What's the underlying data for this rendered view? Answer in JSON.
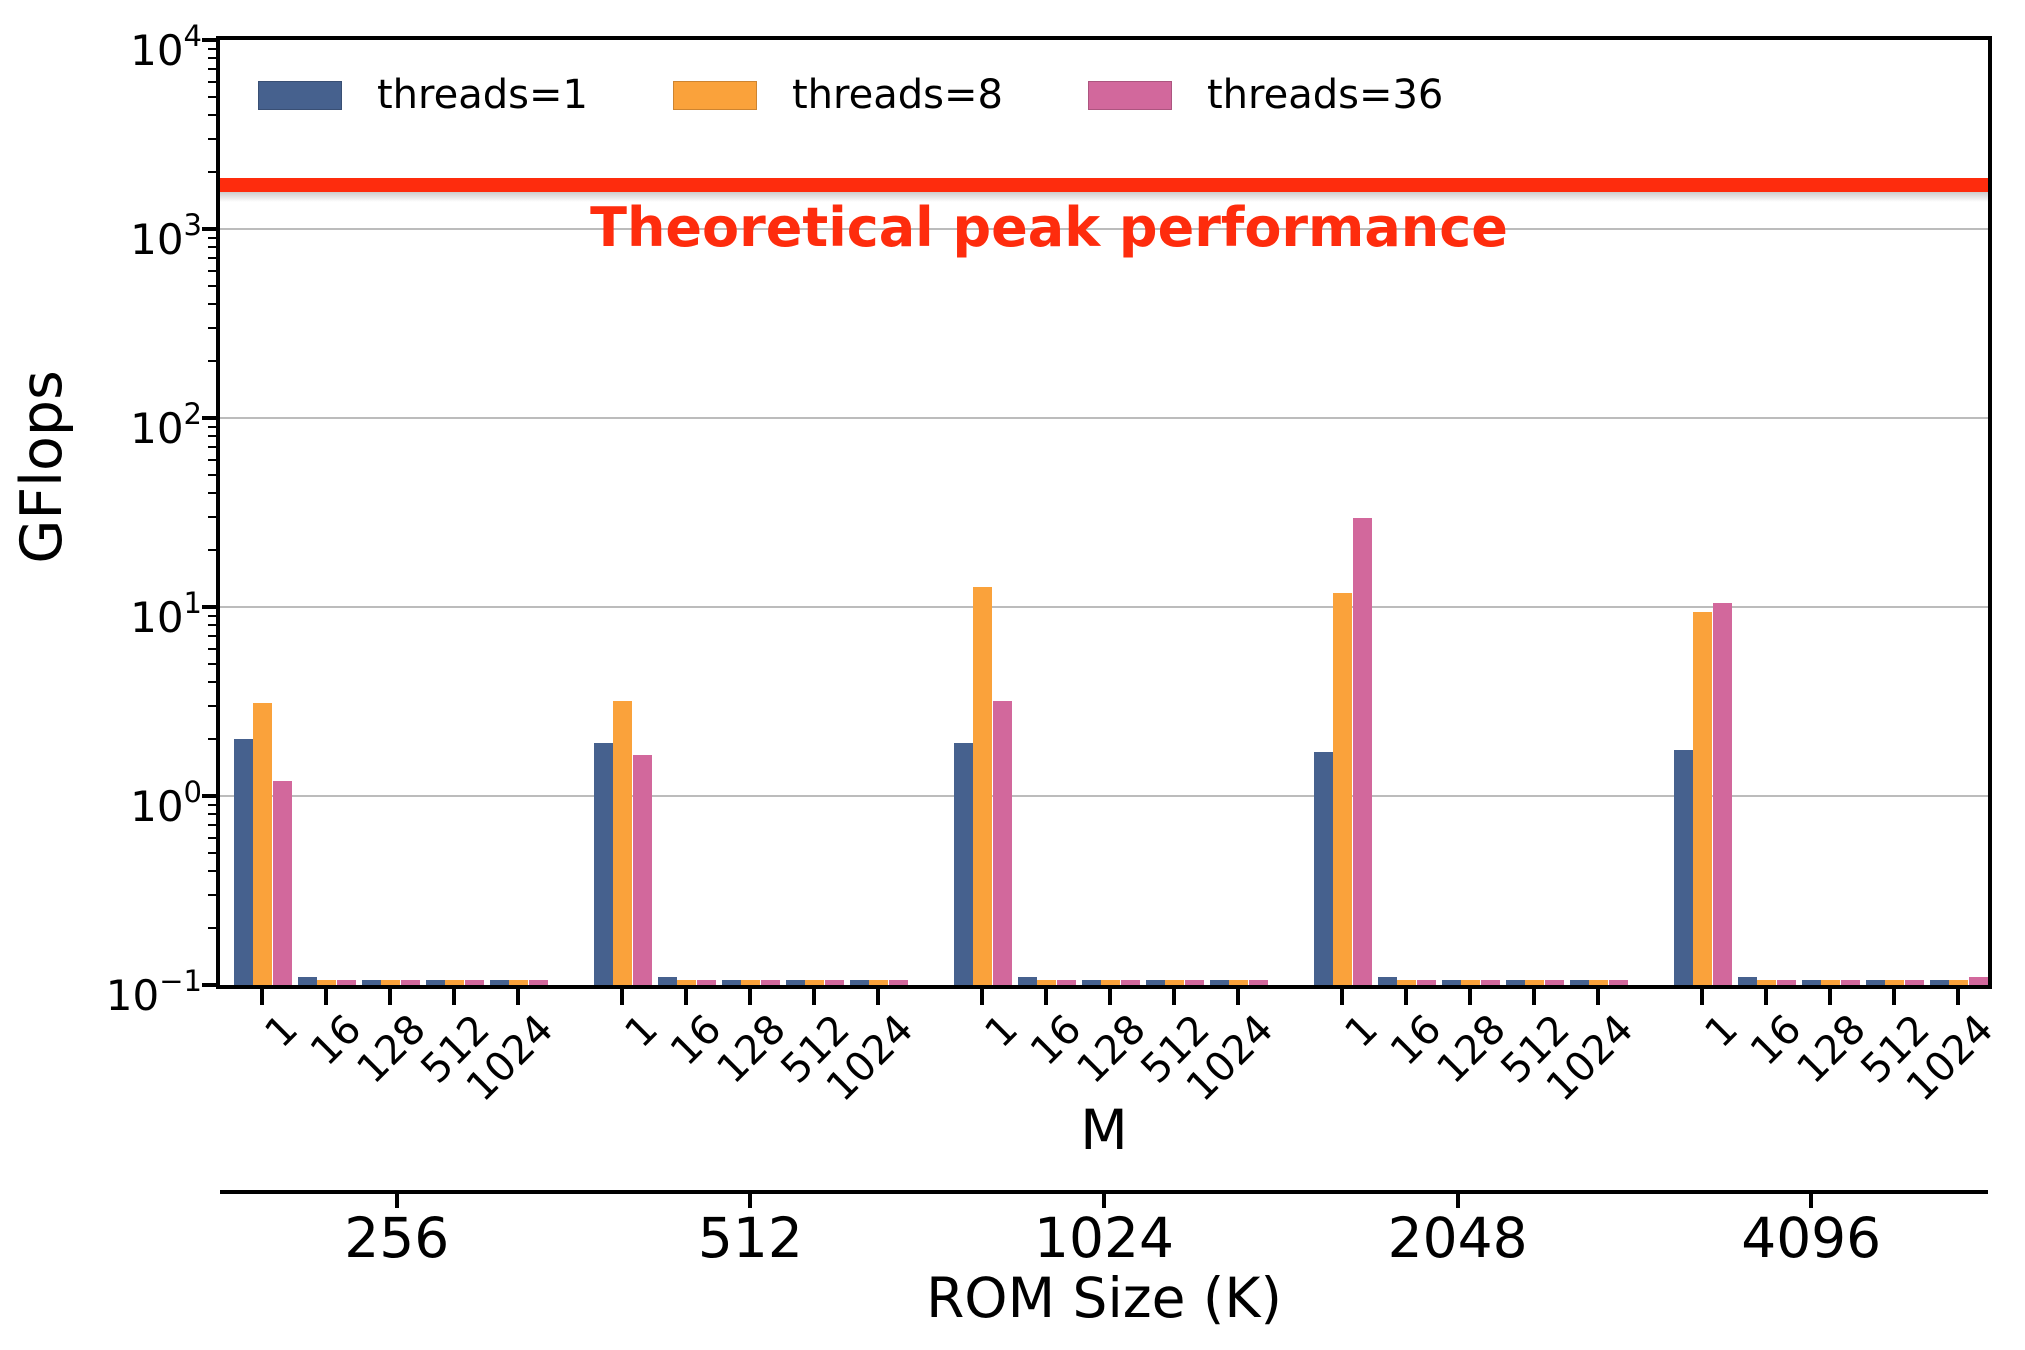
{
  "chart_data": {
    "type": "bar",
    "title": "",
    "ylabel": "GFlops",
    "xlabel": "M",
    "xlabel2": "ROM Size (K)",
    "yscale": "log",
    "ylim": [
      0.1,
      10000
    ],
    "y_tick_exponents": [
      4,
      3,
      2,
      1,
      0,
      -1
    ],
    "grid": "horizontal gridlines at each decade",
    "legend_position": "upper left, horizontal row",
    "groups": [
      "256",
      "512",
      "1024",
      "2048",
      "4096"
    ],
    "categories": [
      "1",
      "16",
      "128",
      "512",
      "1024"
    ],
    "series": [
      {
        "name": "threads=1",
        "color": "#46618e",
        "values": {
          "256": [
            2.0,
            0.11,
            0.1,
            0.1,
            0.1
          ],
          "512": [
            1.9,
            0.11,
            0.1,
            0.1,
            0.1
          ],
          "1024": [
            1.9,
            0.11,
            0.1,
            0.1,
            0.1
          ],
          "2048": [
            1.7,
            0.11,
            0.1,
            0.1,
            0.1
          ],
          "4096": [
            1.75,
            0.11,
            0.1,
            0.1,
            0.1
          ]
        }
      },
      {
        "name": "threads=8",
        "color": "#faa23b",
        "values": {
          "256": [
            3.1,
            0.1,
            0.1,
            0.1,
            0.1
          ],
          "512": [
            3.2,
            0.1,
            0.1,
            0.1,
            0.1
          ],
          "1024": [
            12.8,
            0.1,
            0.1,
            0.1,
            0.1
          ],
          "2048": [
            11.8,
            0.1,
            0.1,
            0.1,
            0.1
          ],
          "4096": [
            9.4,
            0.1,
            0.1,
            0.1,
            0.1
          ]
        }
      },
      {
        "name": "threads=36",
        "color": "#d2689c",
        "values": {
          "256": [
            1.2,
            0.1,
            0.1,
            0.1,
            0.1
          ],
          "512": [
            1.65,
            0.1,
            0.1,
            0.1,
            0.1
          ],
          "1024": [
            3.2,
            0.1,
            0.1,
            0.1,
            0.1
          ],
          "2048": [
            29.5,
            0.1,
            0.1,
            0.1,
            0.1
          ],
          "4096": [
            10.5,
            0.1,
            0.1,
            0.1,
            0.11
          ]
        }
      }
    ],
    "peak_line": {
      "label": "Theoretical peak performance",
      "value_gflops": 1700,
      "color": "#fe2c0d"
    }
  }
}
